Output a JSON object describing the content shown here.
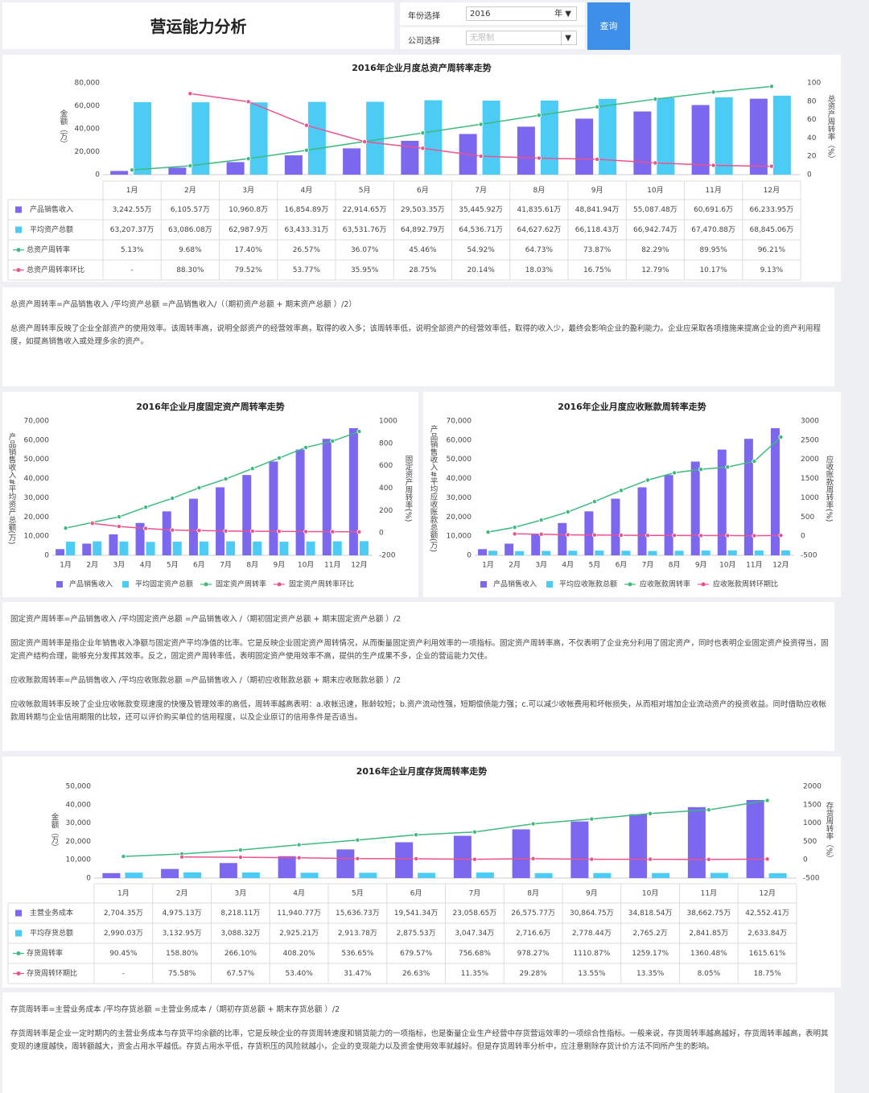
{
  "header": {
    "title": "营运能力分析",
    "year_label": "年份选择",
    "year_value": "2016",
    "year_unit": "年 ▼",
    "company_label": "公司选择",
    "company_value": "无限制",
    "company_arrow": "▼",
    "query_button": "查询"
  },
  "chart_data": [
    {
      "type": "bar-line",
      "title": "2016年企业月度总资产周转率走势",
      "ylabel": "金额（万）",
      "y2label": "总资产周转率（%）",
      "table": true,
      "categories": [
        "1月",
        "2月",
        "3月",
        "4月",
        "5月",
        "6月",
        "7月",
        "8月",
        "9月",
        "10月",
        "11月",
        "12月"
      ],
      "ylim": [
        0,
        80000
      ],
      "yticks": [
        0,
        {
          "value": 20000,
          "label": "20,000"
        },
        {
          "value": 40000,
          "label": "40,000"
        },
        {
          "value": 60000,
          "label": "60,000"
        },
        {
          "value": 80000,
          "label": "80,000"
        }
      ],
      "y2lim": [
        0,
        100
      ],
      "y2ticks": [
        0,
        20,
        40,
        60,
        80,
        100
      ],
      "series": [
        {
          "name": "产品销售收入",
          "type": "bar",
          "color": "#7b68ee",
          "values": [
            3242.55,
            6105.57,
            10960.8,
            16854.89,
            22914.65,
            29503.35,
            35445.92,
            41835.61,
            48841.94,
            55087.48,
            60691.6,
            66233.95
          ],
          "value_labels": [
            "3,242.55万",
            "6,105.57万",
            "10,960.8万",
            "16,854.89万",
            "22,914.65万",
            "29,503.35万",
            "35,445.92万",
            "41,835.61万",
            "48,841.94万",
            "55,087.48万",
            "60,691.6万",
            "66,233.95万"
          ]
        },
        {
          "name": "平均资产总额",
          "type": "bar",
          "color": "#4ccbf5",
          "values": [
            63207.37,
            63086.08,
            62987.9,
            63433.31,
            63531.76,
            64892.79,
            64536.71,
            64627.62,
            66118.43,
            66942.74,
            67470.88,
            68845.06
          ],
          "value_labels": [
            "63,207.37万",
            "63,086.08万",
            "62,987.9万",
            "63,433.31万",
            "63,531.76万",
            "64,892.79万",
            "64,536.71万",
            "64,627.62万",
            "66,118.43万",
            "66,942.74万",
            "67,470.88万",
            "68,845.06万"
          ]
        },
        {
          "name": "总资产周转率",
          "type": "line",
          "axis": "y2",
          "color": "#3dba7e",
          "values": [
            5.13,
            9.68,
            17.4,
            26.57,
            36.07,
            45.46,
            54.92,
            64.73,
            73.87,
            82.29,
            89.95,
            96.21
          ],
          "value_labels": [
            "5.13%",
            "9.68%",
            "17.40%",
            "26.57%",
            "36.07%",
            "45.46%",
            "54.92%",
            "64.73%",
            "73.87%",
            "82.29%",
            "89.95%",
            "96.21%"
          ]
        },
        {
          "name": "总资产周转率环比",
          "type": "line",
          "axis": "y2",
          "color": "#f0508c",
          "values": [
            null,
            88.3,
            79.52,
            53.77,
            35.95,
            28.75,
            20.14,
            18.03,
            16.75,
            12.79,
            10.17,
            9.13
          ],
          "value_labels": [
            "-",
            "88.30%",
            "79.52%",
            "53.77%",
            "35.95%",
            "28.75%",
            "20.14%",
            "18.03%",
            "16.75%",
            "12.79%",
            "10.17%",
            "9.13%"
          ]
        }
      ]
    },
    {
      "type": "bar-line",
      "title": "2016年企业月度固定资产周转率走势",
      "ylabel": "产品销售收入#平均资产总额(万)",
      "y2label": "固定资产周转率(%)",
      "table": false,
      "legend": "bottom",
      "categories": [
        "1月",
        "2月",
        "3月",
        "4月",
        "5月",
        "6月",
        "7月",
        "8月",
        "9月",
        "10月",
        "11月",
        "12月"
      ],
      "ylim": [
        0,
        70000
      ],
      "yticks": [
        0,
        {
          "value": 10000,
          "label": "10,000"
        },
        {
          "value": 20000,
          "label": "20,000"
        },
        {
          "value": 30000,
          "label": "30,000"
        },
        {
          "value": 40000,
          "label": "40,000"
        },
        {
          "value": 50000,
          "label": "50,000"
        },
        {
          "value": 60000,
          "label": "60,000"
        },
        {
          "value": 70000,
          "label": "70,000"
        }
      ],
      "y2lim": [
        -200,
        1000
      ],
      "y2ticks": [
        -200,
        0,
        200,
        400,
        600,
        800,
        1000
      ],
      "series": [
        {
          "name": "产品销售收入",
          "type": "bar",
          "color": "#7b68ee",
          "values": [
            3242.55,
            6105.57,
            10960.8,
            16854.89,
            22914.65,
            29503.35,
            35445.92,
            41835.61,
            48841.94,
            55087.48,
            60691.6,
            66233.95
          ]
        },
        {
          "name": "平均固定资产总额",
          "type": "bar",
          "color": "#4ccbf5",
          "values": [
            7100,
            7300,
            7200,
            7000,
            7100,
            7200,
            7300,
            7200,
            7100,
            7200,
            7300,
            7400
          ]
        },
        {
          "name": "固定资产周转率",
          "type": "line",
          "axis": "y2",
          "color": "#3dba7e",
          "values": [
            43,
            94,
            144,
            230,
            310,
            403,
            482,
            575,
            669,
            763,
            820,
            906
          ]
        },
        {
          "name": "固定资产周转率环比",
          "type": "line",
          "axis": "y2",
          "color": "#f0508c",
          "values": [
            null,
            86,
            58,
            40,
            26,
            22,
            17,
            16,
            14,
            12,
            11,
            10
          ]
        }
      ]
    },
    {
      "type": "bar-line",
      "title": "2016年企业月度应收账款周转率走势",
      "ylabel": "产品销售收入#平均应收账款总额(万)",
      "y2label": "应收账款周转率(%)",
      "table": false,
      "legend": "bottom",
      "categories": [
        "1月",
        "2月",
        "3月",
        "4月",
        "5月",
        "6月",
        "7月",
        "8月",
        "9月",
        "10月",
        "11月",
        "12月"
      ],
      "ylim": [
        0,
        70000
      ],
      "yticks": [
        0,
        {
          "value": 10000,
          "label": "10,000"
        },
        {
          "value": 20000,
          "label": "20,000"
        },
        {
          "value": 30000,
          "label": "30,000"
        },
        {
          "value": 40000,
          "label": "40,000"
        },
        {
          "value": 50000,
          "label": "50,000"
        },
        {
          "value": 60000,
          "label": "60,000"
        },
        {
          "value": 70000,
          "label": "70,000"
        }
      ],
      "y2lim": [
        -500,
        3000
      ],
      "y2ticks": [
        -500,
        0,
        500,
        1000,
        1500,
        2000,
        2500,
        3000
      ],
      "series": [
        {
          "name": "产品销售收入",
          "type": "bar",
          "color": "#7b68ee",
          "values": [
            3242.55,
            6105.57,
            10960.8,
            16854.89,
            22914.65,
            29503.35,
            35445.92,
            41835.61,
            48841.94,
            55087.48,
            60691.6,
            66233.95
          ]
        },
        {
          "name": "平均应收账款总额",
          "type": "bar",
          "color": "#4ccbf5",
          "values": [
            2400,
            2200,
            2300,
            2400,
            2500,
            2400,
            2300,
            2400,
            2500,
            2600,
            2500,
            2600
          ]
        },
        {
          "name": "应收账款周转率",
          "type": "line",
          "axis": "y2",
          "color": "#3dba7e",
          "values": [
            105,
            230,
            420,
            630,
            900,
            1190,
            1460,
            1650,
            1740,
            1800,
            1950,
            2580
          ]
        },
        {
          "name": "应收账款周转环期比",
          "type": "line",
          "axis": "y2",
          "color": "#f0508c",
          "values": [
            null,
            60,
            50,
            35,
            30,
            25,
            20,
            20,
            15,
            15,
            12,
            20
          ]
        }
      ]
    },
    {
      "type": "bar-line",
      "title": "2016年企业月度存货周转率走势",
      "ylabel": "金额（万）",
      "y2label": "存货周转率（%）",
      "table": true,
      "categories": [
        "1月",
        "2月",
        "3月",
        "4月",
        "5月",
        "6月",
        "7月",
        "8月",
        "9月",
        "10月",
        "11月",
        "12月"
      ],
      "ylim": [
        0,
        50000
      ],
      "yticks": [
        0,
        {
          "value": 10000,
          "label": "10,000"
        },
        {
          "value": 20000,
          "label": "20,000"
        },
        {
          "value": 30000,
          "label": "30,000"
        },
        {
          "value": 40000,
          "label": "40,000"
        },
        {
          "value": 50000,
          "label": "50,000"
        }
      ],
      "y2lim": [
        -500,
        2000
      ],
      "y2ticks": [
        -500,
        0,
        500,
        1000,
        1500,
        2000
      ],
      "series": [
        {
          "name": "主营业务成本",
          "type": "bar",
          "color": "#7b68ee",
          "values": [
            2704.35,
            4975.13,
            8218.11,
            11940.77,
            15636.73,
            19541.34,
            23058.65,
            26575.77,
            30864.75,
            34818.54,
            38662.75,
            42552.41
          ],
          "value_labels": [
            "2,704.35万",
            "4,975.13万",
            "8,218.11万",
            "11,940.77万",
            "15,636.73万",
            "19,541.34万",
            "23,058.65万",
            "26,575.77万",
            "30,864.75万",
            "34,818.54万",
            "38,662.75万",
            "42,552.41万"
          ]
        },
        {
          "name": "平均存货总额",
          "type": "bar",
          "color": "#4ccbf5",
          "values": [
            2990.03,
            3132.95,
            3088.32,
            2925.21,
            2913.78,
            2875.53,
            3047.34,
            2716.6,
            2778.44,
            2765.2,
            2841.85,
            2633.84
          ],
          "value_labels": [
            "2,990.03万",
            "3,132.95万",
            "3,088.32万",
            "2,925.21万",
            "2,913.78万",
            "2,875.53万",
            "3,047.34万",
            "2,716.6万",
            "2,778.44万",
            "2,765.2万",
            "2,841.85万",
            "2,633.84万"
          ]
        },
        {
          "name": "存货周转率",
          "type": "line",
          "axis": "y2",
          "color": "#3dba7e",
          "values": [
            90.45,
            158.8,
            266.1,
            408.2,
            536.65,
            679.57,
            756.68,
            978.27,
            1110.87,
            1259.17,
            1360.48,
            1615.61
          ],
          "value_labels": [
            "90.45%",
            "158.80%",
            "266.10%",
            "408.20%",
            "536.65%",
            "679.57%",
            "756.68%",
            "978.27%",
            "1110.87%",
            "1259.17%",
            "1360.48%",
            "1615.61%"
          ]
        },
        {
          "name": "存货周转环期比",
          "type": "line",
          "axis": "y2",
          "color": "#f0508c",
          "values": [
            null,
            75.58,
            67.57,
            53.4,
            31.47,
            26.63,
            11.35,
            29.28,
            13.55,
            13.35,
            8.05,
            18.75
          ],
          "value_labels": [
            "-",
            "75.58%",
            "67.57%",
            "53.40%",
            "31.47%",
            "26.63%",
            "11.35%",
            "29.28%",
            "13.55%",
            "13.35%",
            "8.05%",
            "18.75%"
          ]
        }
      ]
    }
  ],
  "notes": [
    [
      "总资产周转率=产品销售收入 /平均资产总额 =产品销售收入/（（期初资产总额 + 期末资产总额 ）/2）",
      "总资产周转率反映了企业全部资产的使用效率。该周转率高，说明全部资产的经营效率高，取得的收入多；该周转率低，说明全部资产的经营效率低，取得的收入少，最终会影响企业的盈利能力。企业应采取各项措施来提高企业的资产利用程度，如提高销售收入或处理多余的资产。"
    ],
    [
      "固定资产周转率=产品销售收入 /平均固定资产总额 =产品销售收入 /（期初固定资产总额 + 期末固定资产总额 ）/2",
      "固定资产周转率是指企业年销售收入净额与固定资产平均净值的比率。它是反映企业固定资产周转情况，从而衡量固定资产利用效率的一项指标。固定资产周转率高，不仅表明了企业充分利用了固定资产，同时也表明企业固定资产投资得当，固定资产结构合理，能够充分发挥其效率。反之，固定资产周转率低，表明固定资产使用效率不高，提供的生产成果不多，企业的营运能力欠佳。",
      "应收账款周转率=产品销售收入 /平均应收账款总额 =产品销售收入 /（期初应收账款总额 + 期末应收账款总额 ）/2",
      "应收帐款周转率反映了企业应收帐款变现速度的快慢及管理效率的高低，周转率越高表明：a.收帐迅速，账龄较短；b.资产流动性强，短期偿债能力强；c.可以减少收帐费用和坏帐损失，从而相对增加企业流动资产的投资收益。同时借助应收帐款周转期与企业信用期限的比较，还可以评价购买单位的信用程度，以及企业原订的信用条件是否适当。"
    ],
    [
      "存货周转率=主营业务成本 /平均存货总额 =主营业务成本 /（期初存货总额 + 期末存货总额 ）/2",
      "存货周转率是企业一定时期内的主营业务成本与存货平均余额的比率，它是反映企业的存货周转速度和销货能力的一项指标，也是衡量企业生产经营中存货营运效率的一项综合性指标。一般来说，存货周转率越高越好，存货周转率越高，表明其变现的速度越快，周转额越大，资金占用水平越低。存货占用水平低，存货积压的风险就越小，企业的变现能力以及资金使用效率就越好。但是存货周转率分析中，应注意剔除存货计价方法不同所产生的影响。"
    ]
  ]
}
